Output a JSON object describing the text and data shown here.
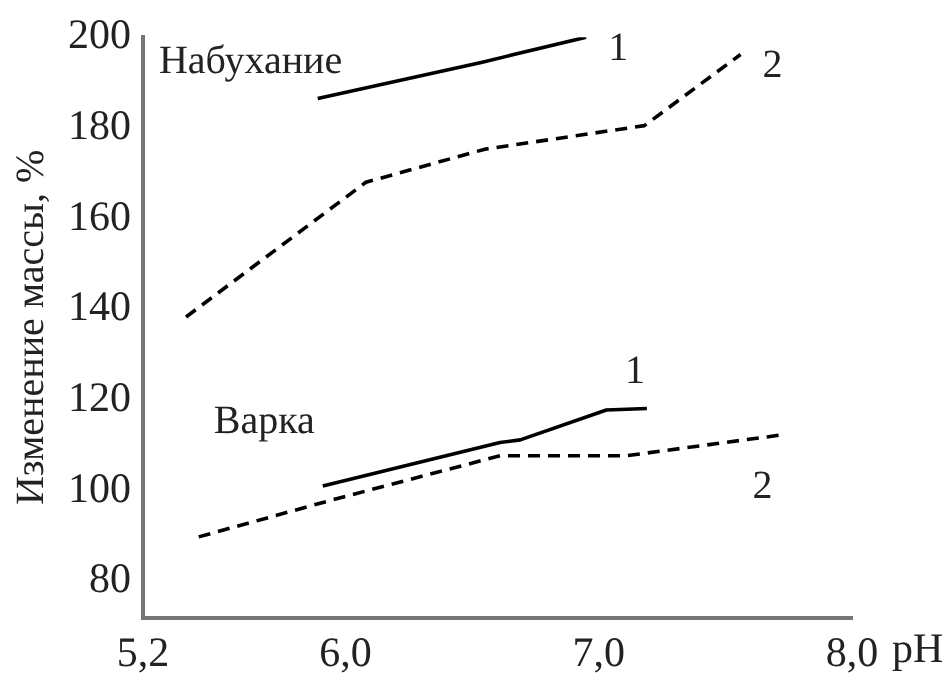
{
  "chart_data": {
    "type": "line",
    "xlabel": "pH",
    "ylabel": "Изменение массы, %",
    "xlim": [
      5.2,
      8.0
    ],
    "ylim": [
      72,
      200
    ],
    "xticks": [
      {
        "value": 5.2,
        "label": "5,2"
      },
      {
        "value": 6,
        "label": "6,0"
      },
      {
        "value": 7,
        "label": "7,0"
      },
      {
        "value": 8,
        "label": "8,0"
      }
    ],
    "yticks": [
      80,
      100,
      120,
      140,
      160,
      180,
      200
    ],
    "grid": false,
    "legend": false,
    "marker": "none",
    "series": [
      {
        "name": "1",
        "color": "#000000",
        "line_style": "solid",
        "x": [
          5.89,
          6.54,
          6.95
        ],
        "values": [
          186.5,
          194.5,
          200
        ]
      },
      {
        "name": "2",
        "color": "#000000",
        "line_style": "dashed",
        "x": [
          5.37,
          6.08,
          6.55,
          7.18,
          7.56
        ],
        "values": [
          138.3,
          168,
          175.3,
          180.5,
          196.2
        ]
      },
      {
        "name": "1",
        "color": "#000000",
        "line_style": "solid",
        "x": [
          5.91,
          6.61,
          6.69,
          7.03,
          7.19
        ],
        "values": [
          101,
          110.6,
          111.2,
          117.8,
          118.1
        ]
      },
      {
        "name": "2",
        "color": "#000000",
        "line_style": "dashed",
        "x": [
          5.42,
          5.95,
          6.61,
          7.11,
          7.71
        ],
        "values": [
          89.8,
          98,
          107.7,
          107.7,
          112.2
        ]
      }
    ],
    "annotations": [
      "Набухание",
      "Варка"
    ]
  }
}
